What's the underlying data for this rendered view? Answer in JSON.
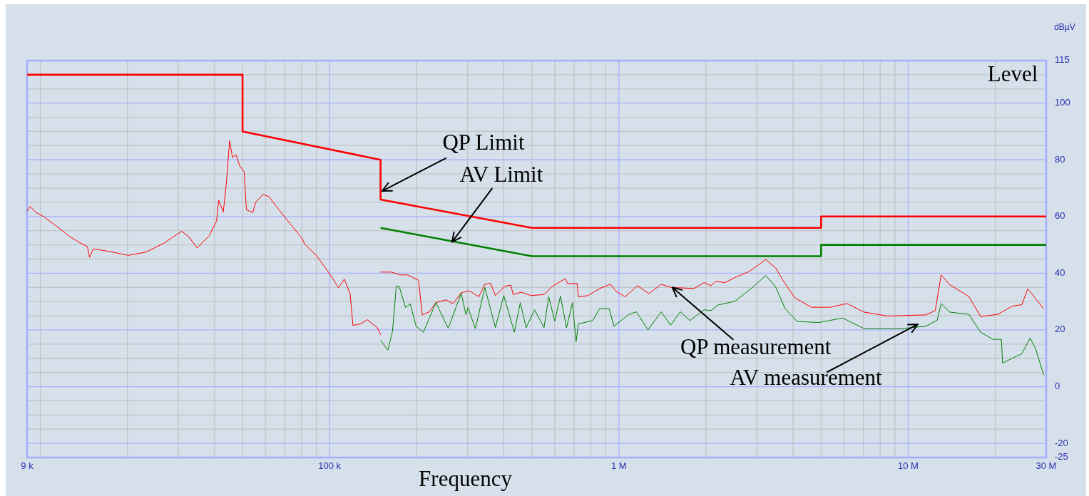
{
  "chart_data": {
    "type": "line",
    "xlabel": "Frequency",
    "ylabel": "dBµV",
    "log": "x",
    "grid": true,
    "xlim": [
      9000,
      30000000
    ],
    "ylim": [
      -25,
      115
    ],
    "xticks": [
      {
        "value": 9000,
        "label": "9 k"
      },
      {
        "value": 10000,
        "label": null
      },
      {
        "value": 20000,
        "label": null
      },
      {
        "value": 30000,
        "label": null
      },
      {
        "value": 40000,
        "label": null
      },
      {
        "value": 50000,
        "label": null
      },
      {
        "value": 60000,
        "label": null
      },
      {
        "value": 70000,
        "label": null
      },
      {
        "value": 80000,
        "label": null
      },
      {
        "value": 90000,
        "label": null
      },
      {
        "value": 100000,
        "label": "100 k"
      },
      {
        "value": 200000,
        "label": null
      },
      {
        "value": 300000,
        "label": null
      },
      {
        "value": 400000,
        "label": null
      },
      {
        "value": 500000,
        "label": null
      },
      {
        "value": 600000,
        "label": null
      },
      {
        "value": 700000,
        "label": null
      },
      {
        "value": 800000,
        "label": null
      },
      {
        "value": 900000,
        "label": null
      },
      {
        "value": 1000000,
        "label": "1 M"
      },
      {
        "value": 2000000,
        "label": null
      },
      {
        "value": 3000000,
        "label": null
      },
      {
        "value": 4000000,
        "label": null
      },
      {
        "value": 5000000,
        "label": null
      },
      {
        "value": 6000000,
        "label": null
      },
      {
        "value": 7000000,
        "label": null
      },
      {
        "value": 8000000,
        "label": null
      },
      {
        "value": 9000000,
        "label": null
      },
      {
        "value": 10000000,
        "label": "10 M"
      },
      {
        "value": 20000000,
        "label": null
      },
      {
        "value": 30000000,
        "label": "30 M"
      }
    ],
    "yticks": [
      115,
      {
        "value": 110,
        "label": null
      },
      {
        "value": 105,
        "label": null
      },
      100,
      {
        "value": 95,
        "label": null
      },
      {
        "value": 90,
        "label": null
      },
      {
        "value": 85,
        "label": null
      },
      80,
      {
        "value": 75,
        "label": null
      },
      {
        "value": 70,
        "label": null
      },
      {
        "value": 65,
        "label": null
      },
      60,
      {
        "value": 55,
        "label": null
      },
      {
        "value": 50,
        "label": null
      },
      {
        "value": 45,
        "label": null
      },
      40,
      {
        "value": 35,
        "label": null
      },
      {
        "value": 30,
        "label": null
      },
      {
        "value": 25,
        "label": null
      },
      20,
      {
        "value": 15,
        "label": null
      },
      {
        "value": 10,
        "label": null
      },
      {
        "value": 5,
        "label": null
      },
      0,
      {
        "value": -5,
        "label": null
      },
      {
        "value": -10,
        "label": null
      },
      {
        "value": -15,
        "label": null
      },
      -20,
      -25
    ],
    "annotations": [
      {
        "text": "QP Limit",
        "x": 152000,
        "y": 69
      },
      {
        "text": "AV Limit",
        "x": 265000,
        "y": 51
      },
      {
        "text": "QP measurement",
        "x": 1530000,
        "y": 35
      },
      {
        "text": "AV measurement",
        "x": 10800000,
        "y": 22
      },
      "Level"
    ],
    "series": [
      {
        "color": "#ff0000",
        "x": [
          9000,
          50000,
          50000,
          150000,
          150000,
          500000,
          5000000,
          5000000,
          30000000
        ],
        "values": [
          110,
          110,
          90,
          80,
          66,
          56,
          56,
          60,
          60
        ]
      },
      {
        "color": "#008000",
        "x": [
          150000,
          500000,
          5000000,
          5000000,
          30000000
        ],
        "values": [
          56,
          46,
          46,
          50,
          50
        ]
      },
      {
        "color": "#ff0000",
        "x": [
          9000,
          9230,
          9605,
          10290,
          11550,
          12680,
          13900,
          14550,
          14790,
          15240,
          17490,
          20110,
          23090,
          26530,
          30800,
          32640,
          34830,
          38390,
          40650,
          41350,
          42890,
          43900,
          45110,
          46170,
          47460,
          48910,
          50660,
          51550,
          54260,
          55490,
          58850,
          61640,
          66790,
          73200,
          80400,
          81920,
          90210,
          96570,
          101200,
          107300,
          112400,
          117700,
          120400,
          127500,
          135100,
          146100,
          150000
        ],
        "values": [
          61.9,
          63.5,
          61.6,
          59.9,
          56.1,
          52.8,
          50.4,
          49.4,
          45.6,
          48.6,
          47.6,
          46.3,
          47.4,
          50.4,
          54.8,
          52.8,
          48.9,
          53.3,
          58.4,
          65.7,
          61.6,
          71.1,
          86.7,
          80.8,
          81.8,
          77.8,
          75.8,
          62.4,
          61.4,
          65,
          67.8,
          67,
          62.4,
          57.3,
          52.3,
          50.3,
          46.1,
          42,
          39,
          34.9,
          37.9,
          32.8,
          21.6,
          22.1,
          23.6,
          20.8,
          18.3
        ]
      },
      {
        "color": "#ff0000",
        "x": [
          150000,
          163000,
          176000,
          186000,
          203000,
          209000,
          221000,
          233000,
          252000,
          267000,
          285000,
          304000,
          328000,
          344000,
          360000,
          374000,
          403000,
          423000,
          431000,
          460000,
          497000,
          551000,
          589000,
          653000,
          665000,
          717000,
          724000,
          781000,
          858000,
          934000,
          979000,
          1050000,
          1160000,
          1270000,
          1400000,
          1510000,
          1820000,
          1970000,
          2080000,
          2160000,
          2330000,
          2520000,
          2820000,
          3220000,
          3480000,
          3680000,
          4050000,
          4630000,
          5390000,
          6150000,
          7030000,
          8500000,
          11500000,
          12400000,
          13000000,
          13900000,
          16200000,
          17800000,
          20400000,
          22900000,
          24700000,
          25900000,
          27600000,
          29300000
        ],
        "values": [
          40.4,
          40.4,
          39.4,
          39.4,
          37.5,
          25.3,
          26.4,
          29.6,
          30.6,
          29.3,
          33.1,
          33.8,
          31.7,
          36.1,
          36.5,
          32.1,
          35.4,
          35.8,
          32.5,
          33.3,
          32.1,
          32.5,
          35.4,
          38.1,
          36.3,
          36.4,
          31.7,
          32.1,
          34.6,
          36.1,
          33.6,
          31.7,
          35.6,
          32.8,
          36.1,
          35,
          34.6,
          36.7,
          35.6,
          37.1,
          36.7,
          38.5,
          40.6,
          44.8,
          41.9,
          37.7,
          31.4,
          28,
          28,
          29.3,
          26.3,
          24.9,
          25.3,
          26.8,
          39.4,
          36,
          31.8,
          24.7,
          25.5,
          28.4,
          28.9,
          34.5,
          31,
          27.6
        ]
      },
      {
        "color": "#008000",
        "x": [
          150000,
          159000,
          165000,
          170000,
          174000,
          183000,
          190000,
          199000,
          211000,
          233000,
          257000,
          285000,
          296000,
          301000,
          319000,
          344000,
          374000,
          400000,
          435000,
          456000,
          478000,
          511000,
          551000,
          572000,
          600000,
          628000,
          659000,
          691000,
          711000,
          724000,
          811000,
          858000,
          925000,
          961000,
          1080000,
          1150000,
          1260000,
          1400000,
          1510000,
          1630000,
          1760000,
          1970000,
          2080000,
          2200000,
          2520000,
          2880000,
          3220000,
          3480000,
          3750000,
          4130000,
          4900000,
          5930000,
          7030000,
          9530000,
          11500000,
          12600000,
          13000000,
          13900000,
          16200000,
          17800000,
          19600000,
          21000000,
          21200000,
          22900000,
          24700000,
          26400000,
          27600000,
          29400000
        ],
        "values": [
          16.3,
          12.9,
          19.6,
          35.4,
          35.3,
          27.9,
          29.2,
          21.3,
          19.2,
          29.6,
          20.6,
          32.9,
          25.4,
          27.9,
          20.4,
          35,
          20.8,
          32.1,
          19.2,
          29.6,
          20.8,
          27.1,
          20.8,
          31.7,
          23.1,
          31.9,
          20.8,
          29.6,
          15.8,
          22.1,
          23.3,
          27.5,
          27.5,
          21.3,
          25.4,
          26.4,
          20,
          26.4,
          21.7,
          26.4,
          23.3,
          27.1,
          26.8,
          28.8,
          30.1,
          34.8,
          39.2,
          35.2,
          27.6,
          23,
          22.6,
          24.2,
          20.5,
          20.5,
          21.3,
          23.4,
          29.3,
          26.3,
          25.5,
          19.2,
          16.7,
          16.7,
          8.3,
          10,
          11.6,
          17.1,
          13.3,
          4.1
        ]
      }
    ]
  }
}
